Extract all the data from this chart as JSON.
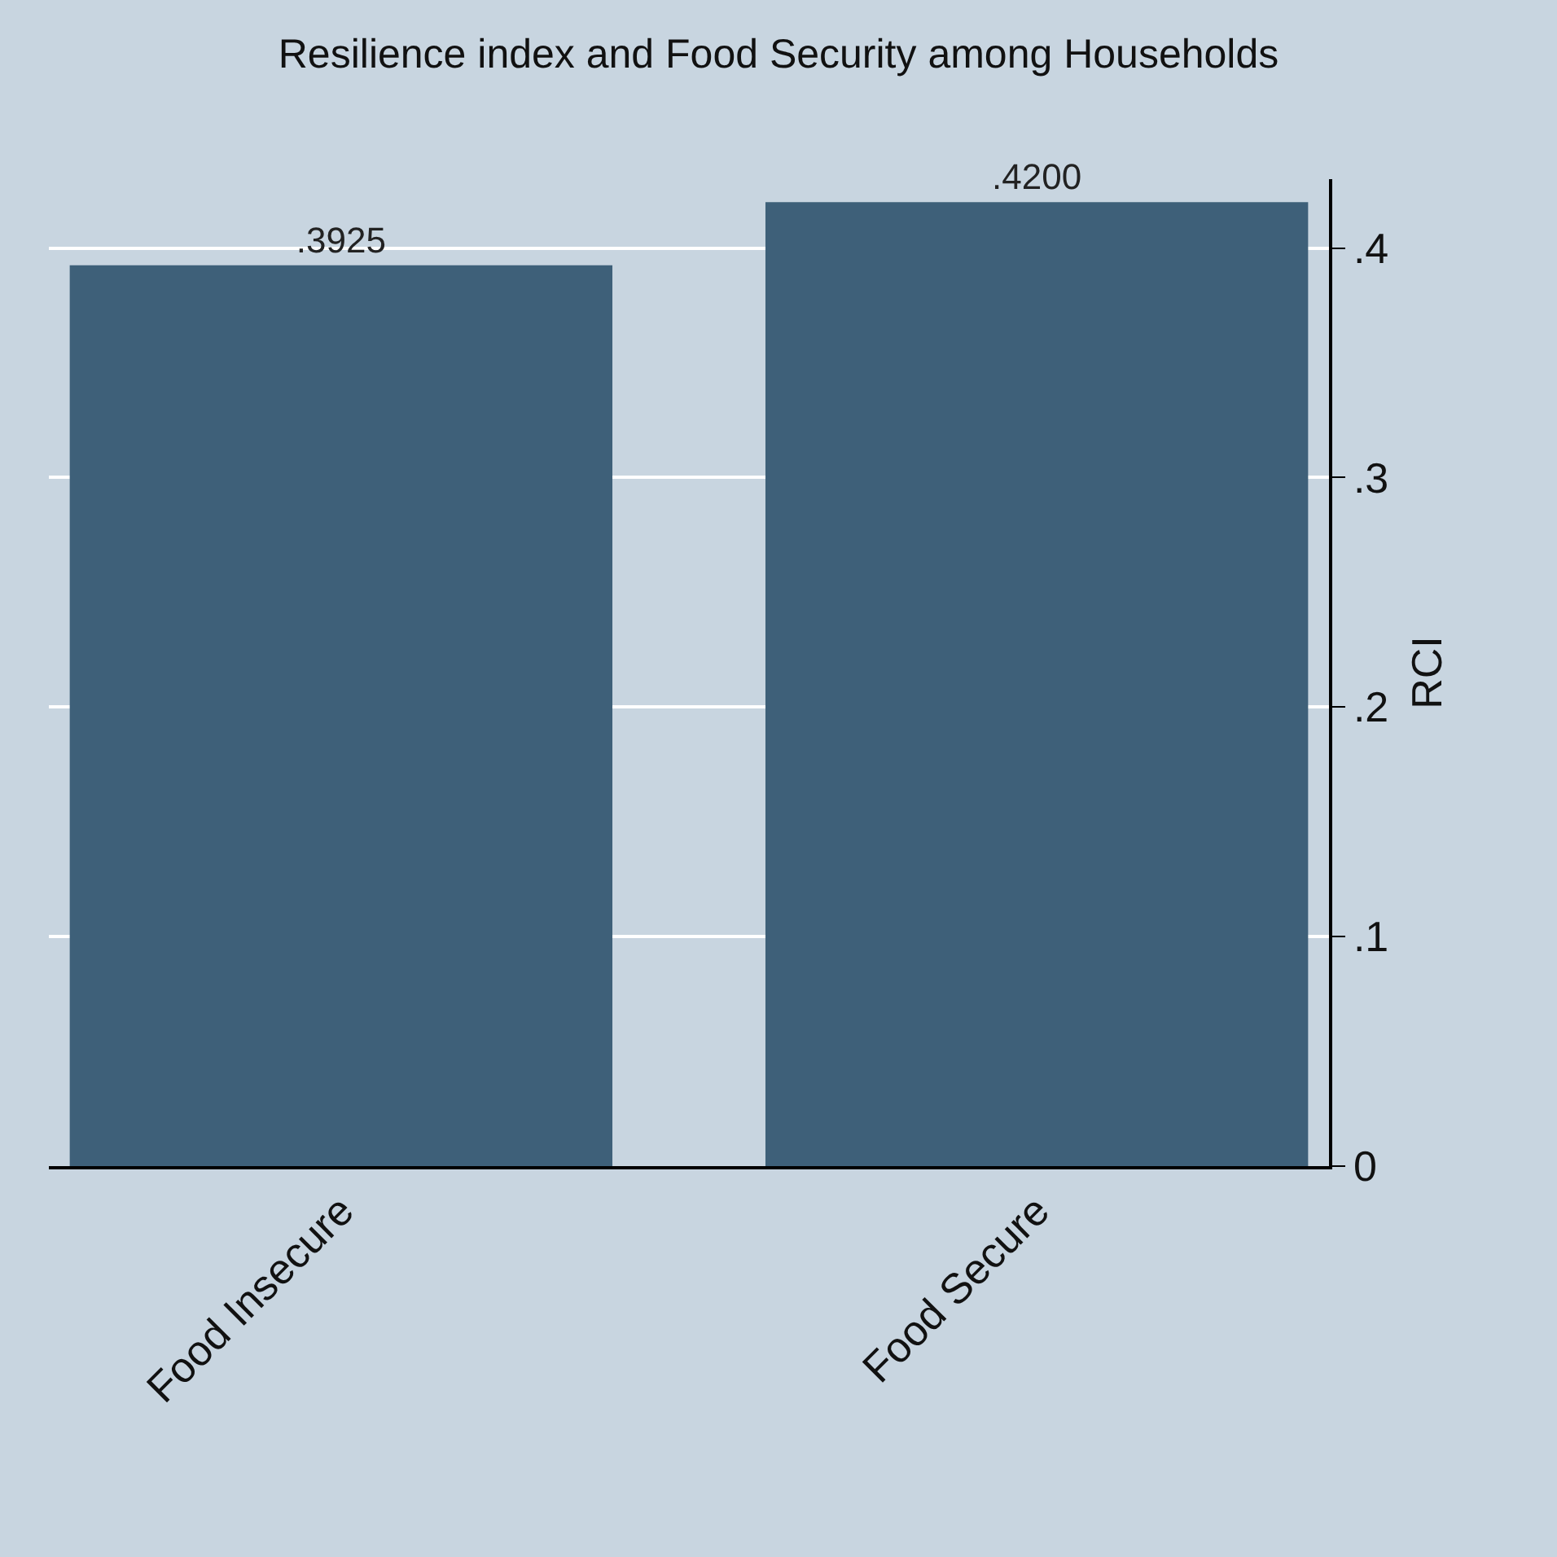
{
  "chart_data": {
    "type": "bar",
    "title": "Resilience index and Food Security among Households",
    "ylabel": "RCI",
    "categories": [
      "Food Insecure",
      "Food Secure"
    ],
    "values": [
      0.3925,
      0.42
    ],
    "value_labels": [
      ".3925",
      ".4200"
    ],
    "color": "#3e6079",
    "ylim": [
      0,
      0.43
    ],
    "yticks": [
      0,
      {
        "value": 0.1,
        "label": ".1"
      },
      {
        "value": 0.2,
        "label": ".2"
      },
      {
        "value": 0.3,
        "label": ".3"
      },
      {
        "value": 0.4,
        "label": ".4"
      }
    ],
    "grid": "y"
  }
}
